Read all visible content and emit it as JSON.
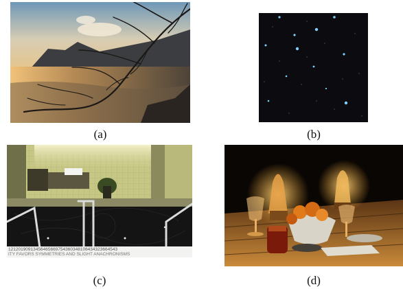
{
  "figure": {
    "panels": [
      {
        "id": "a",
        "caption": "(a)",
        "subject": "sunset-over-sea-with-tree-branches"
      },
      {
        "id": "b",
        "caption": "(b)",
        "subject": "starry-night-sky"
      },
      {
        "id": "c",
        "caption": "(c)",
        "subject": "indoor-pool-with-handrails"
      },
      {
        "id": "d",
        "caption": "(d)",
        "subject": "oil-lamps-and-fruit-on-table"
      }
    ],
    "pool_inscription": {
      "line1": "12120190913456465669754360348106434323664543",
      "line2": "ITY FAVORS SYMMETRIES AND SLIGHT ANACHRONISMS"
    },
    "colors": {
      "sky_a": "#b9c6cf",
      "sea_a": "#8a6a44",
      "night_b": "#0b0b10",
      "star_b": "#7fd0ff",
      "wall_c": "#c9c98a",
      "water_c": "#141414",
      "bg_d": "#0a0603",
      "flame_d": "#ffb23a"
    }
  }
}
